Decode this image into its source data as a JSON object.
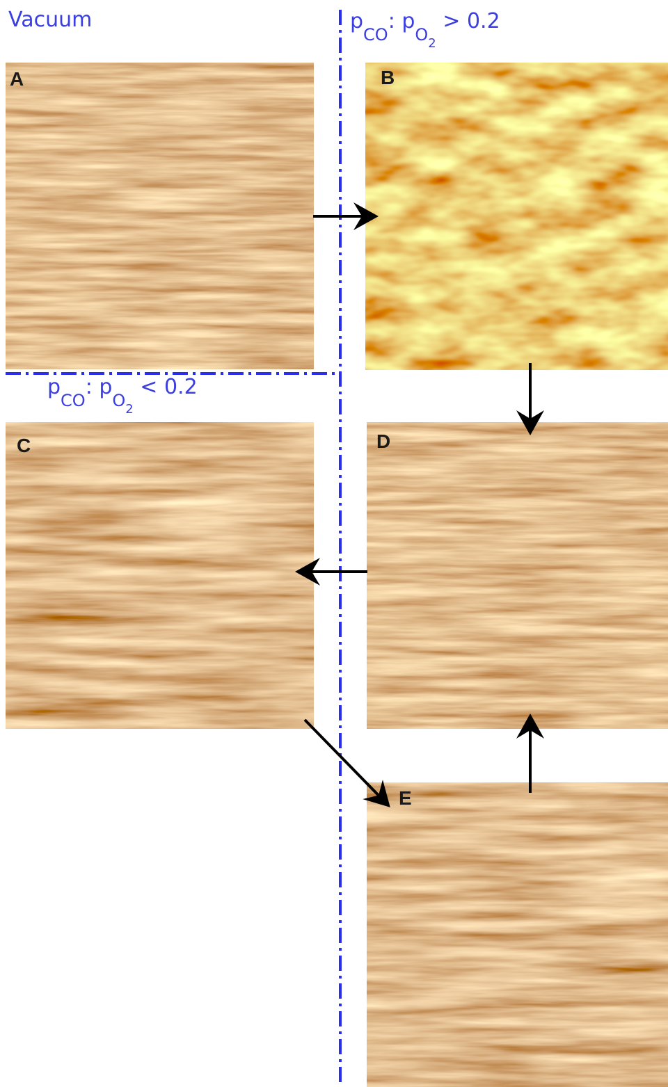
{
  "regions": {
    "vacuum": "Vacuum",
    "high_ratio": {
      "p1": "p",
      "sub1": "CO",
      "sep": ":",
      "p2": "p",
      "sub2": "O",
      "sub2_index": "2",
      "relation": "> 0.2"
    },
    "low_ratio": {
      "p1": "p",
      "sub1": "CO",
      "sep": ":",
      "p2": "p",
      "sub2": "O",
      "sub2_index": "2",
      "relation": "< 0.2"
    }
  },
  "panels": [
    {
      "label": "A"
    },
    {
      "label": "B"
    },
    {
      "label": "C"
    },
    {
      "label": "D"
    },
    {
      "label": "E"
    }
  ]
}
